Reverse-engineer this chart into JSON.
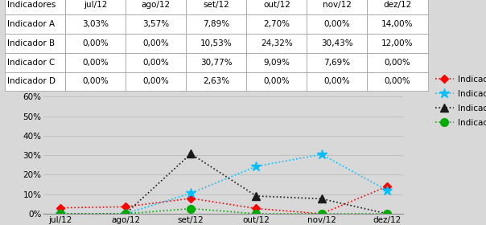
{
  "categories": [
    "jul/12",
    "ago/12",
    "set/12",
    "out/12",
    "nov/12",
    "dez/12"
  ],
  "table_header": [
    "Indicadores",
    "jul/12",
    "ago/12",
    "set/12",
    "out/12",
    "nov/12",
    "dez/12"
  ],
  "rows": [
    {
      "label": "Indicador A",
      "values": [
        3.03,
        3.57,
        7.89,
        2.7,
        0.0,
        14.0
      ]
    },
    {
      "label": "Indicador B",
      "values": [
        0.0,
        0.0,
        10.53,
        24.32,
        30.43,
        12.0
      ]
    },
    {
      "label": "Indicador C",
      "values": [
        0.0,
        0.0,
        30.77,
        9.09,
        7.69,
        0.0
      ]
    },
    {
      "label": "Indicador D",
      "values": [
        0.0,
        0.0,
        2.63,
        0.0,
        0.0,
        0.0
      ]
    }
  ],
  "table_values_str": [
    [
      "3,03%",
      "3,57%",
      "7,89%",
      "2,70%",
      "0,00%",
      "14,00%"
    ],
    [
      "0,00%",
      "0,00%",
      "10,53%",
      "24,32%",
      "30,43%",
      "12,00%"
    ],
    [
      "0,00%",
      "0,00%",
      "30,77%",
      "9,09%",
      "7,69%",
      "0,00%"
    ],
    [
      "0,00%",
      "0,00%",
      "2,63%",
      "0,00%",
      "0,00%",
      "0,00%"
    ]
  ],
  "line_colors": [
    "#FF0000",
    "#00BFFF",
    "#1a1a1a",
    "#00AA00"
  ],
  "markers": [
    "D",
    "*",
    "^",
    "o"
  ],
  "marker_sizes": [
    5,
    9,
    7,
    7
  ],
  "legend_labels": [
    "Indicador A",
    "Indicador B",
    "Indicador C",
    "Indicador D"
  ],
  "ylim": [
    0,
    60
  ],
  "yticks": [
    0,
    10,
    20,
    30,
    40,
    50,
    60
  ],
  "ytick_labels": [
    "0%",
    "10%",
    "20%",
    "30%",
    "40%",
    "50%",
    "60%"
  ],
  "bg_color": "#D8D8D8",
  "table_bg": "#FFFFFF",
  "font_size_table": 7.5,
  "font_size_axis": 7.5,
  "font_size_legend": 7.5,
  "col_widths": [
    0.22,
    0.13,
    0.13,
    0.13,
    0.13,
    0.13,
    0.13
  ]
}
